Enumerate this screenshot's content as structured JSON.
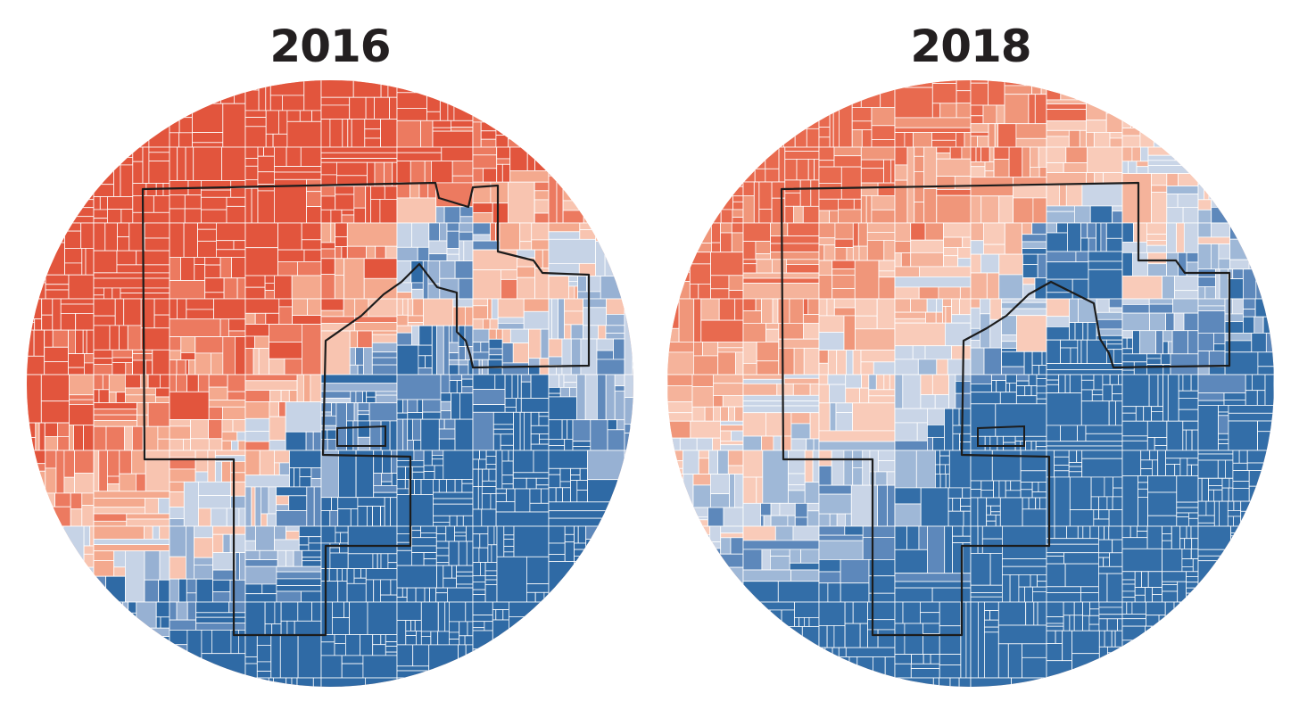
{
  "maps": [
    {
      "year": "2016",
      "palette": {
        "deep_red": "#e2553d",
        "red": "#ec7a60",
        "light_red": "#f4a98e",
        "pale_red": "#f8c4b0",
        "pale_blue": "#c6d3e6",
        "light_blue": "#97b1d3",
        "blue": "#5f89bb",
        "deep_blue": "#2f6aa5"
      }
    },
    {
      "year": "2018",
      "palette": {
        "deep_red": "#e86a4f",
        "red": "#f0967a",
        "light_red": "#f5b39b",
        "pale_red": "#f9cbb9",
        "pale_blue": "#c9d5e7",
        "light_blue": "#9fb8d7",
        "blue": "#5d88bb",
        "deep_blue": "#336ea8"
      }
    }
  ],
  "district_outline_color": "#1c1c1c",
  "precinct_line_color": "#ffffff"
}
